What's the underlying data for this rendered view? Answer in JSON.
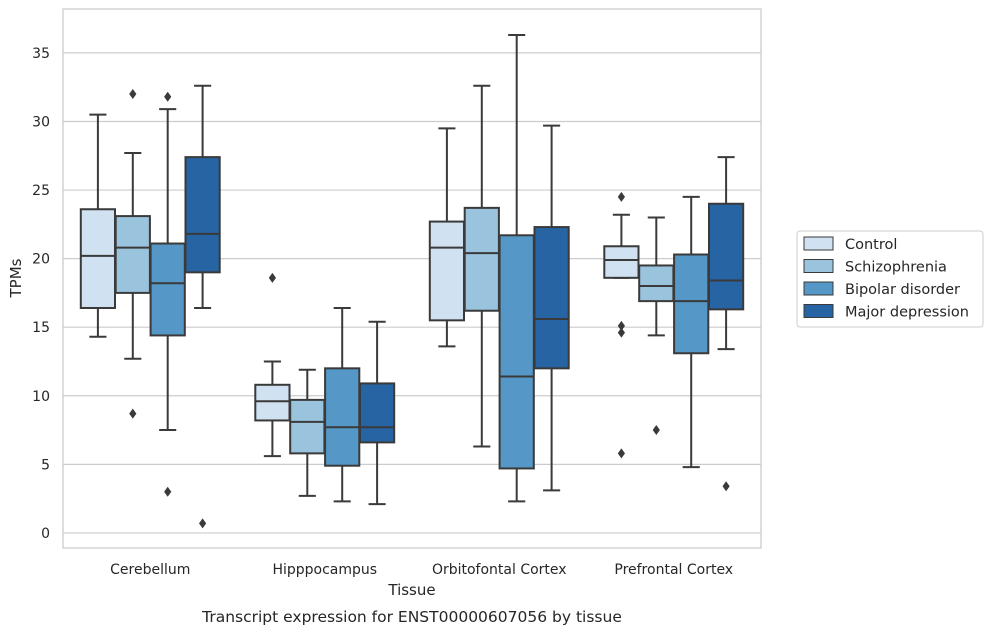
{
  "chart_data": {
    "type": "box",
    "title": "",
    "caption": "Transcript expression for ENST00000607056 by tissue",
    "xlabel": "Tissue",
    "ylabel": "TPMs",
    "ylim": [
      -1.1,
      38.2
    ],
    "yticks": [
      0,
      5,
      10,
      15,
      20,
      25,
      30,
      35
    ],
    "grid": "horizontal",
    "legend_position": "right",
    "categories": [
      "Cerebellum",
      "Hipppocampus",
      "Orbitofontal Cortex",
      "Prefrontal Cortex"
    ],
    "series": [
      {
        "name": "Control",
        "color": "#d0e1f2",
        "boxes": [
          {
            "whisker_low": 14.3,
            "q1": 16.4,
            "median": 20.2,
            "q3": 23.6,
            "whisker_high": 30.5,
            "outliers": []
          },
          {
            "whisker_low": 5.6,
            "q1": 8.2,
            "median": 9.6,
            "q3": 10.8,
            "whisker_high": 12.5,
            "outliers": [
              18.6
            ]
          },
          {
            "whisker_low": 13.6,
            "q1": 15.5,
            "median": 20.8,
            "q3": 22.7,
            "whisker_high": 29.5,
            "outliers": []
          },
          {
            "whisker_low": 18.6,
            "q1": 18.6,
            "median": 19.9,
            "q3": 20.9,
            "whisker_high": 23.2,
            "outliers": [
              24.5,
              15.1,
              14.6,
              5.8
            ]
          }
        ]
      },
      {
        "name": "Schizophrenia",
        "color": "#9ac3dd",
        "boxes": [
          {
            "whisker_low": 12.7,
            "q1": 17.5,
            "median": 20.8,
            "q3": 23.1,
            "whisker_high": 27.7,
            "outliers": [
              32.0,
              8.7
            ]
          },
          {
            "whisker_low": 2.7,
            "q1": 5.8,
            "median": 8.1,
            "q3": 9.7,
            "whisker_high": 11.9,
            "outliers": []
          },
          {
            "whisker_low": 6.3,
            "q1": 16.2,
            "median": 20.4,
            "q3": 23.7,
            "whisker_high": 32.6,
            "outliers": []
          },
          {
            "whisker_low": 14.4,
            "q1": 16.9,
            "median": 18.0,
            "q3": 19.5,
            "whisker_high": 23.0,
            "outliers": [
              7.5
            ]
          }
        ]
      },
      {
        "name": "Bipolar disorder",
        "color": "#5597c6",
        "boxes": [
          {
            "whisker_low": 7.5,
            "q1": 14.4,
            "median": 18.2,
            "q3": 21.1,
            "whisker_high": 30.9,
            "outliers": [
              31.8,
              3.0
            ]
          },
          {
            "whisker_low": 2.3,
            "q1": 4.9,
            "median": 7.7,
            "q3": 12.0,
            "whisker_high": 16.4,
            "outliers": []
          },
          {
            "whisker_low": 2.3,
            "q1": 4.7,
            "median": 11.4,
            "q3": 21.7,
            "whisker_high": 36.3,
            "outliers": []
          },
          {
            "whisker_low": 4.8,
            "q1": 13.1,
            "median": 16.9,
            "q3": 20.3,
            "whisker_high": 24.5,
            "outliers": []
          }
        ]
      },
      {
        "name": "Major depression",
        "color": "#2764a3",
        "boxes": [
          {
            "whisker_low": 16.4,
            "q1": 19.0,
            "median": 21.8,
            "q3": 27.4,
            "whisker_high": 32.6,
            "outliers": [
              0.7
            ]
          },
          {
            "whisker_low": 2.1,
            "q1": 6.6,
            "median": 7.7,
            "q3": 10.9,
            "whisker_high": 15.4,
            "outliers": []
          },
          {
            "whisker_low": 3.1,
            "q1": 12.0,
            "median": 15.6,
            "q3": 22.3,
            "whisker_high": 29.7,
            "outliers": []
          },
          {
            "whisker_low": 13.4,
            "q1": 16.3,
            "median": 18.4,
            "q3": 24.0,
            "whisker_high": 27.4,
            "outliers": [
              3.4
            ]
          }
        ]
      }
    ]
  }
}
